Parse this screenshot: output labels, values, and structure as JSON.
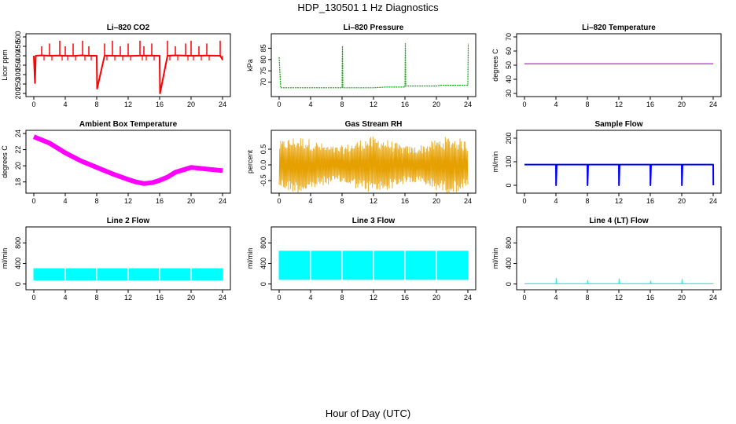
{
  "figure": {
    "title": "HDP_130501  1 Hz Diagnostics",
    "xlabel": "Hour of Day (UTC)"
  },
  "chart_data": [
    {
      "type": "line",
      "title": "Li–820 CO2",
      "ylabel": "Licor ppm",
      "color": "#ff0000",
      "xlim": [
        0,
        24
      ],
      "ylim": [
        200,
        500
      ],
      "xticks": [
        "0",
        "4",
        "8",
        "12",
        "16",
        "20",
        "24"
      ],
      "yticks": [
        "200",
        "250",
        "300",
        "350",
        "400",
        "450",
        "500"
      ],
      "series": [
        {
          "x": [
            0,
            0.15,
            0.25,
            1,
            2,
            3,
            4,
            5,
            6,
            7,
            8,
            8.05,
            9,
            10,
            12,
            14,
            16,
            16.05,
            17,
            18,
            20,
            22,
            23.7,
            24
          ],
          "values": [
            400,
            255,
            400,
            402,
            400,
            401,
            400,
            399,
            402,
            400,
            400,
            225,
            401,
            400,
            399,
            401,
            400,
            200,
            400,
            402,
            400,
            401,
            400,
            380
          ]
        }
      ]
    },
    {
      "type": "line",
      "title": "Li–820 Pressure",
      "ylabel": "kPa",
      "color": "#00aa00",
      "xlim": [
        0,
        24
      ],
      "ylim": [
        65,
        90
      ],
      "xticks": [
        "0",
        "4",
        "8",
        "12",
        "16",
        "20",
        "24"
      ],
      "yticks": [
        "70",
        "75",
        "80",
        "85"
      ],
      "series": [
        {
          "x": [
            0,
            0.1,
            0.2,
            4,
            8,
            8.05,
            8.1,
            12,
            13.5,
            16,
            16.05,
            16.1,
            20,
            20.5,
            24,
            24.05
          ],
          "values": [
            81,
            74,
            67.5,
            67.5,
            67.5,
            86,
            67.5,
            67.5,
            67.8,
            67.8,
            87,
            68.3,
            68.3,
            68.6,
            68.6,
            87
          ]
        }
      ]
    },
    {
      "type": "line",
      "title": "Li–820 Temperature",
      "ylabel": "degrees C",
      "color": "#cc00cc",
      "xlim": [
        0,
        24
      ],
      "ylim": [
        30,
        70
      ],
      "xticks": [
        "0",
        "4",
        "8",
        "12",
        "16",
        "20",
        "24"
      ],
      "yticks": [
        "30",
        "40",
        "50",
        "60",
        "70"
      ],
      "series": [
        {
          "x": [
            0,
            24
          ],
          "values": [
            51,
            51
          ]
        }
      ]
    },
    {
      "type": "line",
      "title": "Ambient Box Temperature",
      "ylabel": "degrees C",
      "color": "#ff00ff",
      "xlim": [
        0,
        24
      ],
      "ylim": [
        17,
        24
      ],
      "xticks": [
        "0",
        "4",
        "8",
        "12",
        "16",
        "20",
        "24"
      ],
      "yticks": [
        "18",
        "20",
        "22",
        "24"
      ],
      "series": [
        {
          "x": [
            0,
            2,
            4,
            6,
            8,
            10,
            12,
            13,
            14,
            15,
            16,
            17,
            18,
            20,
            22,
            24
          ],
          "values": [
            23.6,
            22.8,
            21.6,
            20.6,
            19.8,
            19.0,
            18.3,
            18.0,
            17.8,
            17.9,
            18.2,
            18.6,
            19.2,
            19.8,
            19.6,
            19.4
          ]
        }
      ]
    },
    {
      "type": "line",
      "title": "Gas Stream RH",
      "ylabel": "percent",
      "color": "#e6a000",
      "xlim": [
        0,
        24
      ],
      "ylim": [
        -0.8,
        1.0
      ],
      "xticks": [
        "0",
        "4",
        "8",
        "12",
        "16",
        "20",
        "24"
      ],
      "yticks": [
        "-0.5",
        "0.0",
        "0.5"
      ],
      "series": [
        {
          "x": [
            0,
            2,
            4,
            8,
            12,
            16,
            20,
            24
          ],
          "values": [
            0.0,
            0.1,
            0.05,
            0.0,
            0.05,
            0.1,
            0.0,
            0.0
          ]
        }
      ]
    },
    {
      "type": "line",
      "title": "Sample Flow",
      "ylabel": "ml/min",
      "color": "#0000ff",
      "xlim": [
        0,
        24
      ],
      "ylim": [
        -20,
        220
      ],
      "xticks": [
        "0",
        "4",
        "8",
        "12",
        "16",
        "20",
        "24"
      ],
      "yticks": [
        "0",
        "100",
        "200"
      ],
      "series": [
        {
          "x": [
            0,
            4,
            4.02,
            4.1,
            8,
            8.02,
            8.1,
            12,
            12.02,
            12.1,
            16,
            16.02,
            16.1,
            20,
            20.02,
            20.1,
            24,
            24.02
          ],
          "values": [
            88,
            88,
            0,
            88,
            88,
            0,
            88,
            88,
            0,
            88,
            88,
            0,
            88,
            88,
            0,
            88,
            88,
            0
          ]
        }
      ]
    },
    {
      "type": "area",
      "title": "Line 2 Flow",
      "ylabel": "ml/min",
      "color": "#00ffff",
      "xlim": [
        0,
        24
      ],
      "ylim": [
        -50,
        1050
      ],
      "xticks": [
        "0",
        "4",
        "8",
        "12",
        "16",
        "20",
        "24"
      ],
      "yticks": [
        "0",
        "400",
        "800"
      ],
      "series": [
        {
          "x": [
            0,
            24
          ],
          "values": [
            300,
            300
          ],
          "low": [
            80,
            80
          ]
        }
      ]
    },
    {
      "type": "area",
      "title": "Line 3 Flow",
      "ylabel": "ml/min",
      "color": "#00ffff",
      "xlim": [
        0,
        24
      ],
      "ylim": [
        -50,
        1050
      ],
      "xticks": [
        "0",
        "4",
        "8",
        "12",
        "16",
        "20",
        "24"
      ],
      "yticks": [
        "0",
        "400",
        "800"
      ],
      "series": [
        {
          "x": [
            0,
            24
          ],
          "values": [
            640,
            640
          ],
          "low": [
            90,
            90
          ]
        }
      ]
    },
    {
      "type": "line",
      "title": "Line 4 (LT) Flow",
      "ylabel": "ml/min",
      "color": "#00ffff",
      "xlim": [
        0,
        24
      ],
      "ylim": [
        -50,
        1050
      ],
      "xticks": [
        "0",
        "4",
        "8",
        "12",
        "16",
        "20",
        "24"
      ],
      "yticks": [
        "0",
        "400",
        "800"
      ],
      "series": [
        {
          "x": [
            0,
            4,
            4.05,
            4.1,
            8,
            8.05,
            8.1,
            12,
            12.05,
            12.1,
            16,
            16.05,
            16.1,
            20,
            20.05,
            20.1,
            24
          ],
          "values": [
            5,
            5,
            110,
            5,
            5,
            70,
            5,
            5,
            100,
            5,
            5,
            60,
            5,
            5,
            90,
            5,
            5
          ]
        }
      ]
    }
  ]
}
